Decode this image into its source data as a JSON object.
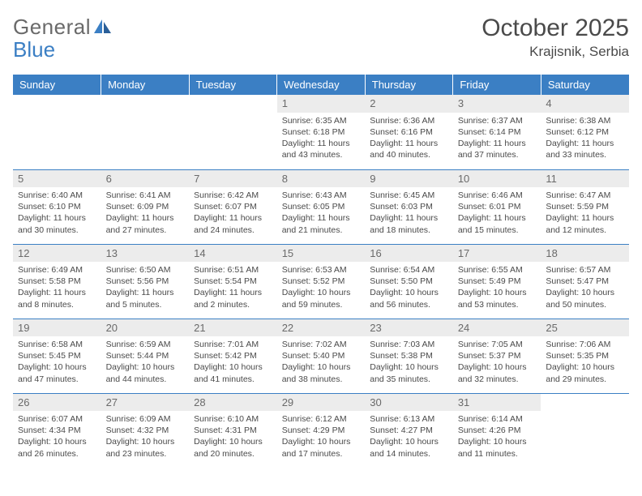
{
  "brand": {
    "word1": "General",
    "word2": "Blue"
  },
  "title": "October 2025",
  "location": "Krajisnik, Serbia",
  "colors": {
    "header_bg": "#3b7fc4",
    "header_text": "#ffffff",
    "daynum_bg": "#ececec",
    "row_border": "#3b7fc4",
    "text": "#4a4a4a",
    "logo_gray": "#6a6a6a",
    "logo_blue": "#3b7fc4"
  },
  "weekdays": [
    "Sunday",
    "Monday",
    "Tuesday",
    "Wednesday",
    "Thursday",
    "Friday",
    "Saturday"
  ],
  "weeks": [
    [
      null,
      null,
      null,
      {
        "n": "1",
        "sr": "6:35 AM",
        "ss": "6:18 PM",
        "dl": "11 hours and 43 minutes."
      },
      {
        "n": "2",
        "sr": "6:36 AM",
        "ss": "6:16 PM",
        "dl": "11 hours and 40 minutes."
      },
      {
        "n": "3",
        "sr": "6:37 AM",
        "ss": "6:14 PM",
        "dl": "11 hours and 37 minutes."
      },
      {
        "n": "4",
        "sr": "6:38 AM",
        "ss": "6:12 PM",
        "dl": "11 hours and 33 minutes."
      }
    ],
    [
      {
        "n": "5",
        "sr": "6:40 AM",
        "ss": "6:10 PM",
        "dl": "11 hours and 30 minutes."
      },
      {
        "n": "6",
        "sr": "6:41 AM",
        "ss": "6:09 PM",
        "dl": "11 hours and 27 minutes."
      },
      {
        "n": "7",
        "sr": "6:42 AM",
        "ss": "6:07 PM",
        "dl": "11 hours and 24 minutes."
      },
      {
        "n": "8",
        "sr": "6:43 AM",
        "ss": "6:05 PM",
        "dl": "11 hours and 21 minutes."
      },
      {
        "n": "9",
        "sr": "6:45 AM",
        "ss": "6:03 PM",
        "dl": "11 hours and 18 minutes."
      },
      {
        "n": "10",
        "sr": "6:46 AM",
        "ss": "6:01 PM",
        "dl": "11 hours and 15 minutes."
      },
      {
        "n": "11",
        "sr": "6:47 AM",
        "ss": "5:59 PM",
        "dl": "11 hours and 12 minutes."
      }
    ],
    [
      {
        "n": "12",
        "sr": "6:49 AM",
        "ss": "5:58 PM",
        "dl": "11 hours and 8 minutes."
      },
      {
        "n": "13",
        "sr": "6:50 AM",
        "ss": "5:56 PM",
        "dl": "11 hours and 5 minutes."
      },
      {
        "n": "14",
        "sr": "6:51 AM",
        "ss": "5:54 PM",
        "dl": "11 hours and 2 minutes."
      },
      {
        "n": "15",
        "sr": "6:53 AM",
        "ss": "5:52 PM",
        "dl": "10 hours and 59 minutes."
      },
      {
        "n": "16",
        "sr": "6:54 AM",
        "ss": "5:50 PM",
        "dl": "10 hours and 56 minutes."
      },
      {
        "n": "17",
        "sr": "6:55 AM",
        "ss": "5:49 PM",
        "dl": "10 hours and 53 minutes."
      },
      {
        "n": "18",
        "sr": "6:57 AM",
        "ss": "5:47 PM",
        "dl": "10 hours and 50 minutes."
      }
    ],
    [
      {
        "n": "19",
        "sr": "6:58 AM",
        "ss": "5:45 PM",
        "dl": "10 hours and 47 minutes."
      },
      {
        "n": "20",
        "sr": "6:59 AM",
        "ss": "5:44 PM",
        "dl": "10 hours and 44 minutes."
      },
      {
        "n": "21",
        "sr": "7:01 AM",
        "ss": "5:42 PM",
        "dl": "10 hours and 41 minutes."
      },
      {
        "n": "22",
        "sr": "7:02 AM",
        "ss": "5:40 PM",
        "dl": "10 hours and 38 minutes."
      },
      {
        "n": "23",
        "sr": "7:03 AM",
        "ss": "5:38 PM",
        "dl": "10 hours and 35 minutes."
      },
      {
        "n": "24",
        "sr": "7:05 AM",
        "ss": "5:37 PM",
        "dl": "10 hours and 32 minutes."
      },
      {
        "n": "25",
        "sr": "7:06 AM",
        "ss": "5:35 PM",
        "dl": "10 hours and 29 minutes."
      }
    ],
    [
      {
        "n": "26",
        "sr": "6:07 AM",
        "ss": "4:34 PM",
        "dl": "10 hours and 26 minutes."
      },
      {
        "n": "27",
        "sr": "6:09 AM",
        "ss": "4:32 PM",
        "dl": "10 hours and 23 minutes."
      },
      {
        "n": "28",
        "sr": "6:10 AM",
        "ss": "4:31 PM",
        "dl": "10 hours and 20 minutes."
      },
      {
        "n": "29",
        "sr": "6:12 AM",
        "ss": "4:29 PM",
        "dl": "10 hours and 17 minutes."
      },
      {
        "n": "30",
        "sr": "6:13 AM",
        "ss": "4:27 PM",
        "dl": "10 hours and 14 minutes."
      },
      {
        "n": "31",
        "sr": "6:14 AM",
        "ss": "4:26 PM",
        "dl": "10 hours and 11 minutes."
      },
      null
    ]
  ],
  "labels": {
    "sunrise": "Sunrise:",
    "sunset": "Sunset:",
    "daylight": "Daylight:"
  }
}
